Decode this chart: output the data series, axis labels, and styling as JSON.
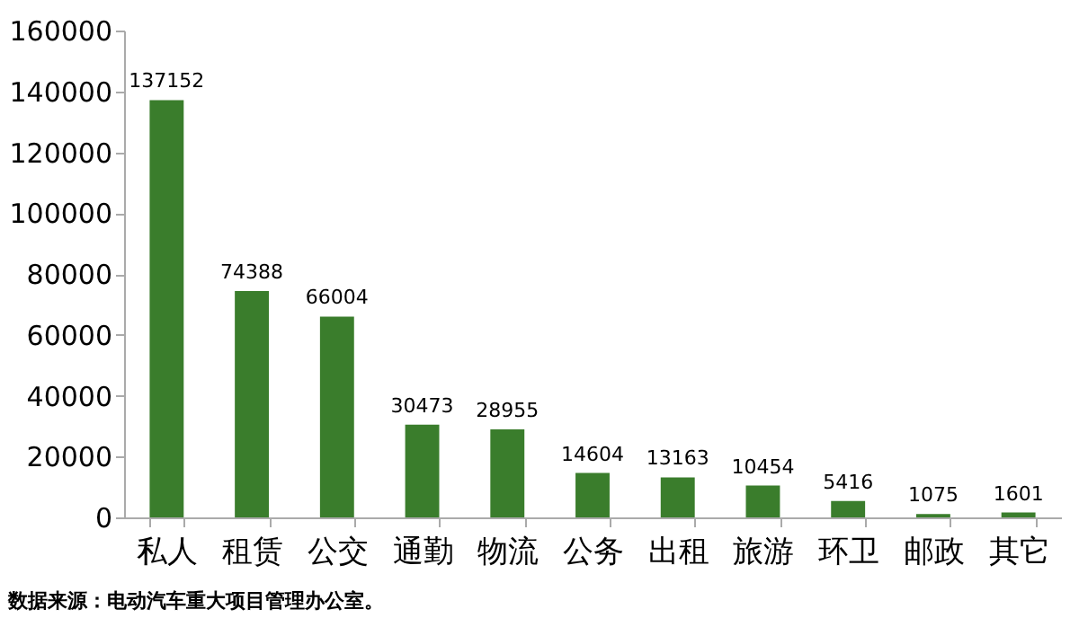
{
  "chart_data": {
    "type": "bar",
    "categories": [
      "私人",
      "租赁",
      "公交",
      "通勤",
      "物流",
      "公务",
      "出租",
      "旅游",
      "环卫",
      "邮政",
      "其它"
    ],
    "values": [
      137152,
      74388,
      66004,
      30473,
      28955,
      14604,
      13163,
      10454,
      5416,
      1075,
      1601
    ],
    "color": "#3a7d2c",
    "ylim": [
      0,
      160000
    ],
    "yticks": [
      0,
      20000,
      40000,
      60000,
      80000,
      100000,
      120000,
      140000,
      160000
    ],
    "grid": false,
    "data_labels": true,
    "annotations": [
      "数据来源：电动汽车重大项目管理办公室。"
    ]
  }
}
